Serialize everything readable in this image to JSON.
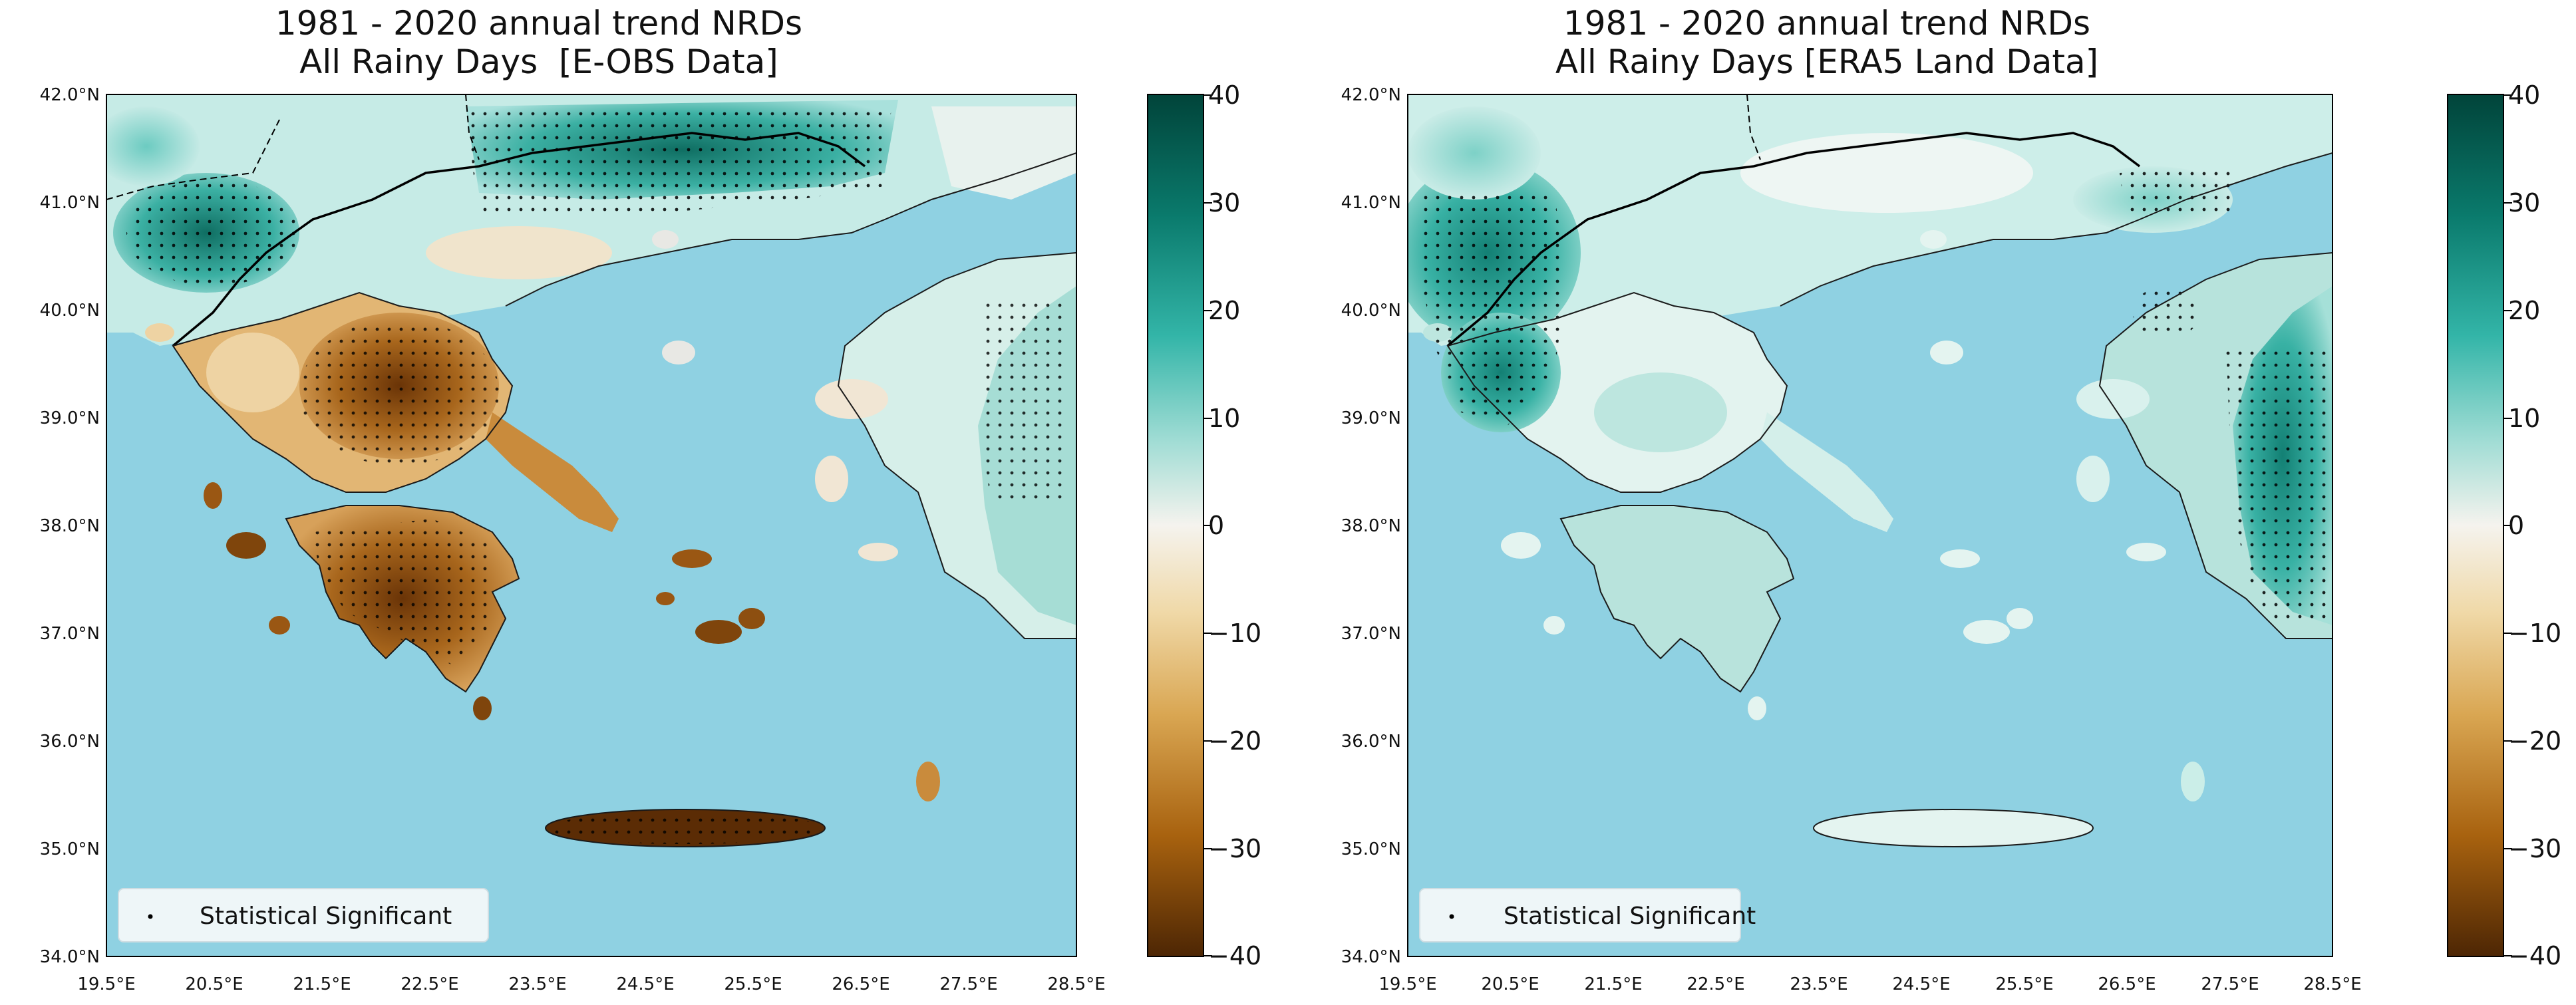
{
  "panels": [
    {
      "id": "eobs",
      "title_line1": "1981 - 2020 annual trend NRDs",
      "title_line2": "All Rainy Days  [E-OBS Data]",
      "legend_label": "Statistical Significant"
    },
    {
      "id": "era5",
      "title_line1": "1981 - 2020 annual trend NRDs",
      "title_line2": "All Rainy Days [ERA5 Land Data]",
      "legend_label": "Statistical Significant"
    }
  ],
  "axes": {
    "lat_labels": [
      "42.0°N",
      "41.0°N",
      "40.0°N",
      "39.0°N",
      "38.0°N",
      "37.0°N",
      "36.0°N",
      "35.0°N",
      "34.0°N"
    ],
    "lon_labels": [
      "19.5°E",
      "20.5°E",
      "21.5°E",
      "22.5°E",
      "23.5°E",
      "24.5°E",
      "25.5°E",
      "26.5°E",
      "27.5°E",
      "28.5°E"
    ]
  },
  "colorbar": {
    "ticks": [
      "40",
      "30",
      "20",
      "10",
      "0",
      "−10",
      "−20",
      "−30",
      "−40"
    ],
    "min": -40,
    "max": 40
  },
  "colors": {
    "sea": "#8fd1e2",
    "positive_strong": "#01443a",
    "positive_mid": "#30b3a6",
    "neutral": "#f4f1ea",
    "negative_mid": "#dcab5c",
    "negative_strong": "#5b2c05"
  }
}
